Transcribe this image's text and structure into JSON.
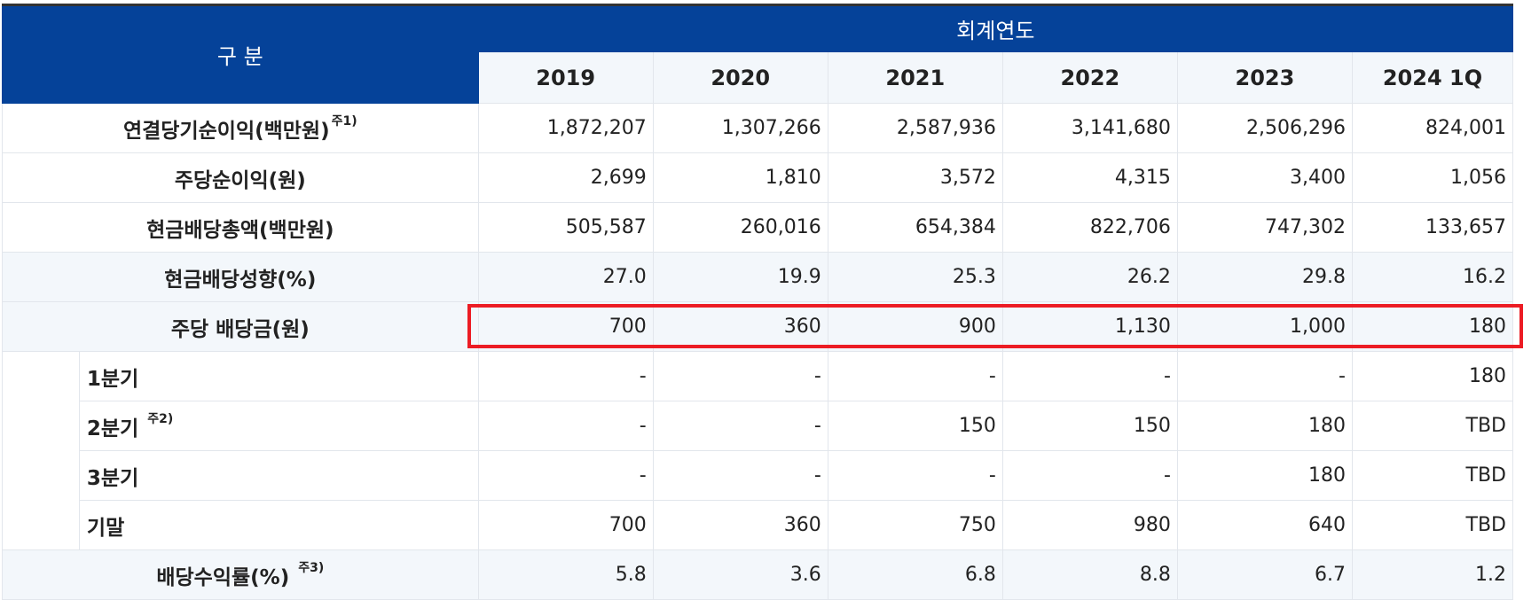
{
  "header": {
    "category": "구 분",
    "fiscal_year": "회계연도",
    "years": [
      "2019",
      "2020",
      "2021",
      "2022",
      "2023",
      "2024 1Q"
    ]
  },
  "rows": [
    {
      "label": "연결당기순이익(백만원)",
      "note": "주1)",
      "values": [
        "1,872,207",
        "1,307,266",
        "2,587,936",
        "3,141,680",
        "2,506,296",
        "824,001"
      ]
    },
    {
      "label": "주당순이익(원)",
      "values": [
        "2,699",
        "1,810",
        "3,572",
        "4,315",
        "3,400",
        "1,056"
      ]
    },
    {
      "label": "현금배당총액(백만원)",
      "values": [
        "505,587",
        "260,016",
        "654,384",
        "822,706",
        "747,302",
        "133,657"
      ]
    },
    {
      "label": "현금배당성향(%)",
      "values": [
        "27.0",
        "19.9",
        "25.3",
        "26.2",
        "29.8",
        "16.2"
      ]
    },
    {
      "label": "주당 배당금(원)",
      "values": [
        "700",
        "360",
        "900",
        "1,130",
        "1,000",
        "180"
      ]
    },
    {
      "label": "1분기",
      "values": [
        "-",
        "-",
        "-",
        "-",
        "-",
        "180"
      ]
    },
    {
      "label": "2분기",
      "note": "주2)",
      "values": [
        "-",
        "-",
        "150",
        "150",
        "180",
        "TBD"
      ]
    },
    {
      "label": "3분기",
      "values": [
        "-",
        "-",
        "-",
        "-",
        "180",
        "TBD"
      ]
    },
    {
      "label": "기말",
      "values": [
        "700",
        "360",
        "750",
        "980",
        "640",
        "TBD"
      ]
    },
    {
      "label": "배당수익률(%)",
      "note": "주3)",
      "values": [
        "5.8",
        "3.6",
        "6.8",
        "8.8",
        "6.7",
        "1.2"
      ]
    }
  ],
  "colors": {
    "header_blue": "#054299",
    "shaded_row": "#f3f7fb",
    "highlight_red": "#ec1c24"
  }
}
